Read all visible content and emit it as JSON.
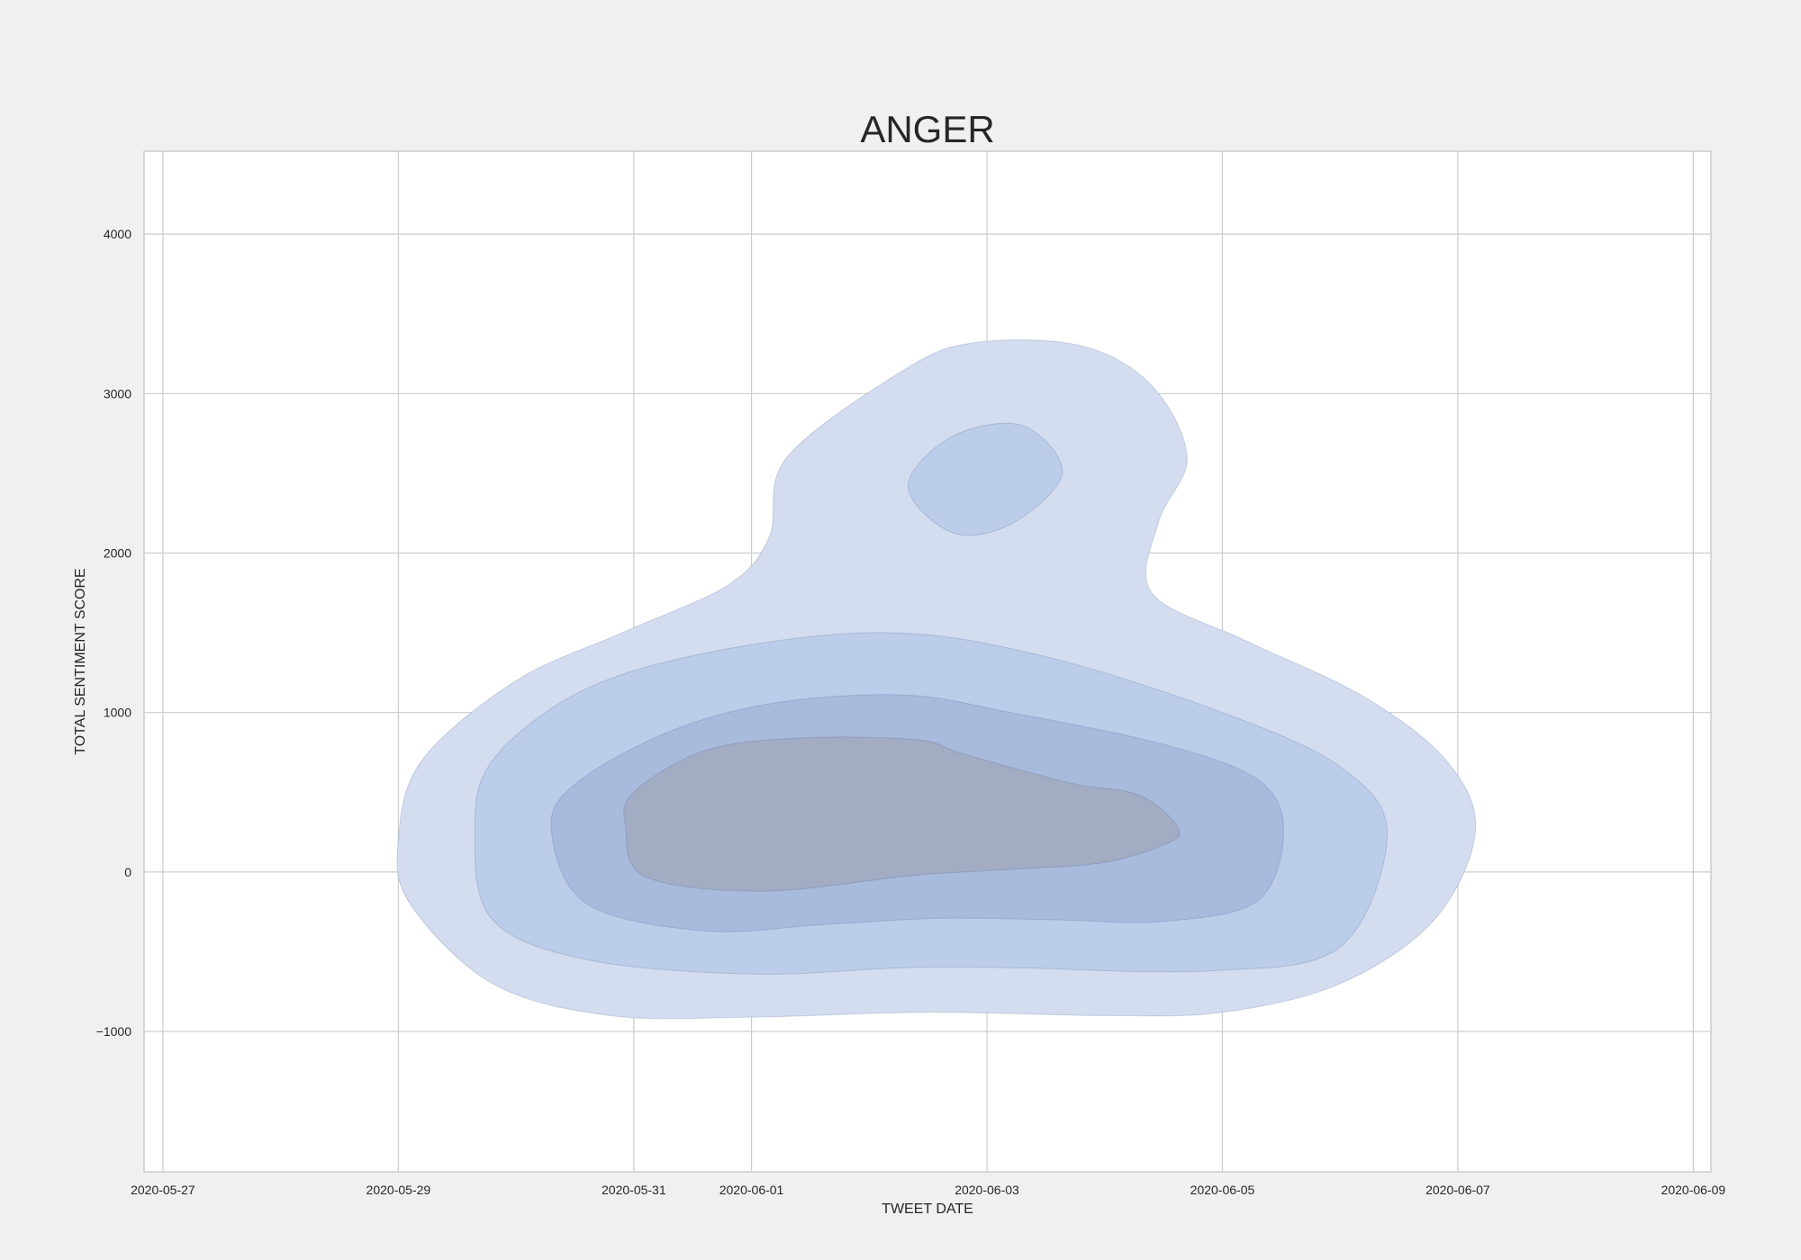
{
  "chart_data": {
    "type": "kde-contour",
    "title": "ANGER",
    "xlabel": "TWEET DATE",
    "ylabel": "TOTAL SENTIMENT SCORE",
    "x_ticks": [
      "2020-05-27",
      "2020-05-29",
      "2020-05-31",
      "2020-06-01",
      "2020-06-03",
      "2020-06-05",
      "2020-06-07",
      "2020-06-09"
    ],
    "x_tick_days": [
      0,
      2,
      4,
      5,
      7,
      9,
      11,
      13
    ],
    "y_ticks": [
      -1000,
      0,
      1000,
      2000,
      3000,
      4000
    ],
    "y_tick_labels": [
      "−1000",
      "0",
      "1000",
      "2000",
      "3000",
      "4000"
    ],
    "xlim_days": [
      -0.16,
      13.15
    ],
    "ylim": [
      -1880,
      4520
    ],
    "grid": true,
    "fill_color": "#4c72b0",
    "levels": [
      {
        "name": "level-1",
        "fill": "#d3ddef",
        "points": [
          [
            2,
            200
          ],
          [
            2.1,
            -200
          ],
          [
            2.8,
            -700
          ],
          [
            3.8,
            -900
          ],
          [
            5,
            -910
          ],
          [
            6.5,
            -880
          ],
          [
            8,
            -900
          ],
          [
            9,
            -880
          ],
          [
            10,
            -700
          ],
          [
            10.8,
            -300
          ],
          [
            11.15,
            260
          ],
          [
            10.9,
            700
          ],
          [
            10.2,
            1100
          ],
          [
            9.2,
            1450
          ],
          [
            8.4,
            1750
          ],
          [
            8.46,
            2200
          ],
          [
            8.7,
            2600
          ],
          [
            8.4,
            3050
          ],
          [
            7.8,
            3300
          ],
          [
            6.9,
            3320
          ],
          [
            6.3,
            3150
          ],
          [
            5.3,
            2600
          ],
          [
            5.15,
            2100
          ],
          [
            4.8,
            1800
          ],
          [
            3.9,
            1500
          ],
          [
            3,
            1200
          ],
          [
            2.2,
            700
          ]
        ]
      },
      {
        "name": "level-2",
        "fill": "#bccde9",
        "points": [
          [
            6.33,
            2420
          ],
          [
            6.7,
            2130
          ],
          [
            7.2,
            2180
          ],
          [
            7.64,
            2500
          ],
          [
            7.3,
            2800
          ],
          [
            6.7,
            2730
          ]
        ]
      },
      {
        "name": "level-3",
        "fill": "#bccde9",
        "points": [
          [
            2.65,
            230
          ],
          [
            2.8,
            -300
          ],
          [
            3.6,
            -550
          ],
          [
            5,
            -640
          ],
          [
            6.3,
            -600
          ],
          [
            7.2,
            -600
          ],
          [
            8.9,
            -620
          ],
          [
            10,
            -470
          ],
          [
            10.4,
            240
          ],
          [
            10,
            660
          ],
          [
            9,
            1000
          ],
          [
            7.5,
            1350
          ],
          [
            6.2,
            1500
          ],
          [
            4.8,
            1400
          ],
          [
            3.6,
            1150
          ],
          [
            2.8,
            700
          ]
        ]
      },
      {
        "name": "level-4",
        "fill": "#a9bbdd",
        "points": [
          [
            3.3,
            260
          ],
          [
            3.6,
            -200
          ],
          [
            4.6,
            -370
          ],
          [
            5.6,
            -330
          ],
          [
            6.6,
            -290
          ],
          [
            7.6,
            -300
          ],
          [
            8.5,
            -310
          ],
          [
            9.3,
            -180
          ],
          [
            9.52,
            260
          ],
          [
            9.3,
            580
          ],
          [
            8.5,
            800
          ],
          [
            7.2,
            1000
          ],
          [
            6.3,
            1110
          ],
          [
            5.2,
            1060
          ],
          [
            4.3,
            880
          ],
          [
            3.5,
            550
          ]
        ]
      },
      {
        "name": "level-5",
        "fill": "#a2acc3",
        "points": [
          [
            3.93,
            280
          ],
          [
            4.1,
            -30
          ],
          [
            5.1,
            -120
          ],
          [
            6.4,
            -20
          ],
          [
            7.3,
            20
          ],
          [
            8,
            60
          ],
          [
            8.5,
            170
          ],
          [
            8.63,
            270
          ],
          [
            8.3,
            480
          ],
          [
            7.7,
            560
          ],
          [
            6.8,
            740
          ],
          [
            6.4,
            830
          ],
          [
            5.4,
            840
          ],
          [
            4.6,
            760
          ],
          [
            4,
            500
          ]
        ]
      }
    ]
  }
}
